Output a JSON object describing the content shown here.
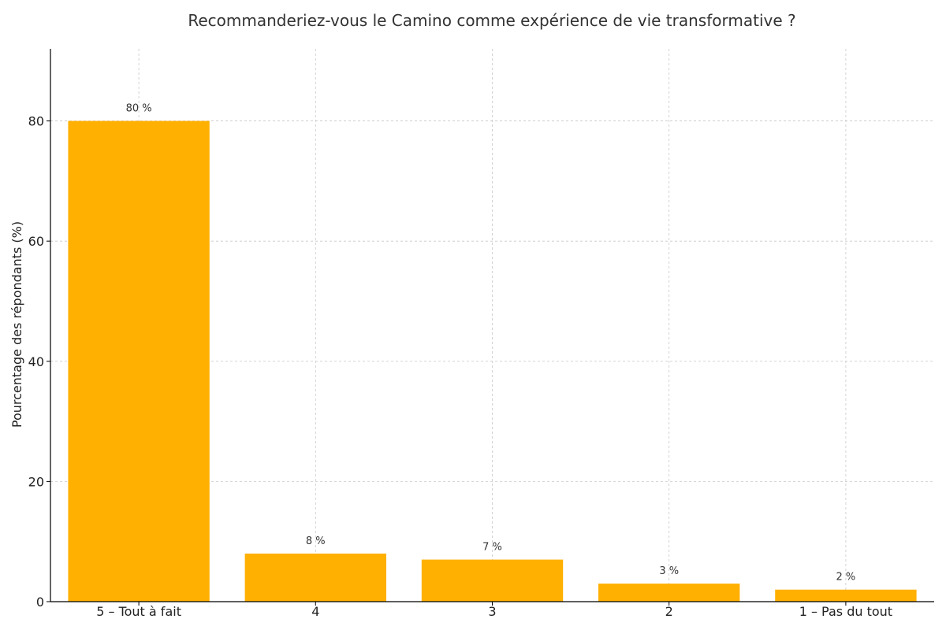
{
  "chart_data": {
    "type": "bar",
    "title": "Recommanderiez-vous le Camino comme expérience de vie transformative ?",
    "xlabel": "",
    "ylabel": "Pourcentage des répondants (%)",
    "categories": [
      "5 – Tout à fait",
      "4",
      "3",
      "2",
      "1 – Pas du tout"
    ],
    "values": [
      80,
      8,
      7,
      3,
      2
    ],
    "data_labels": [
      "80 %",
      "8 %",
      "7 %",
      "3 %",
      "2 %"
    ],
    "ylim": [
      0,
      92
    ],
    "yticks": [
      0,
      20,
      40,
      60,
      80
    ],
    "grid": true,
    "bar_color": "#FFB000"
  }
}
